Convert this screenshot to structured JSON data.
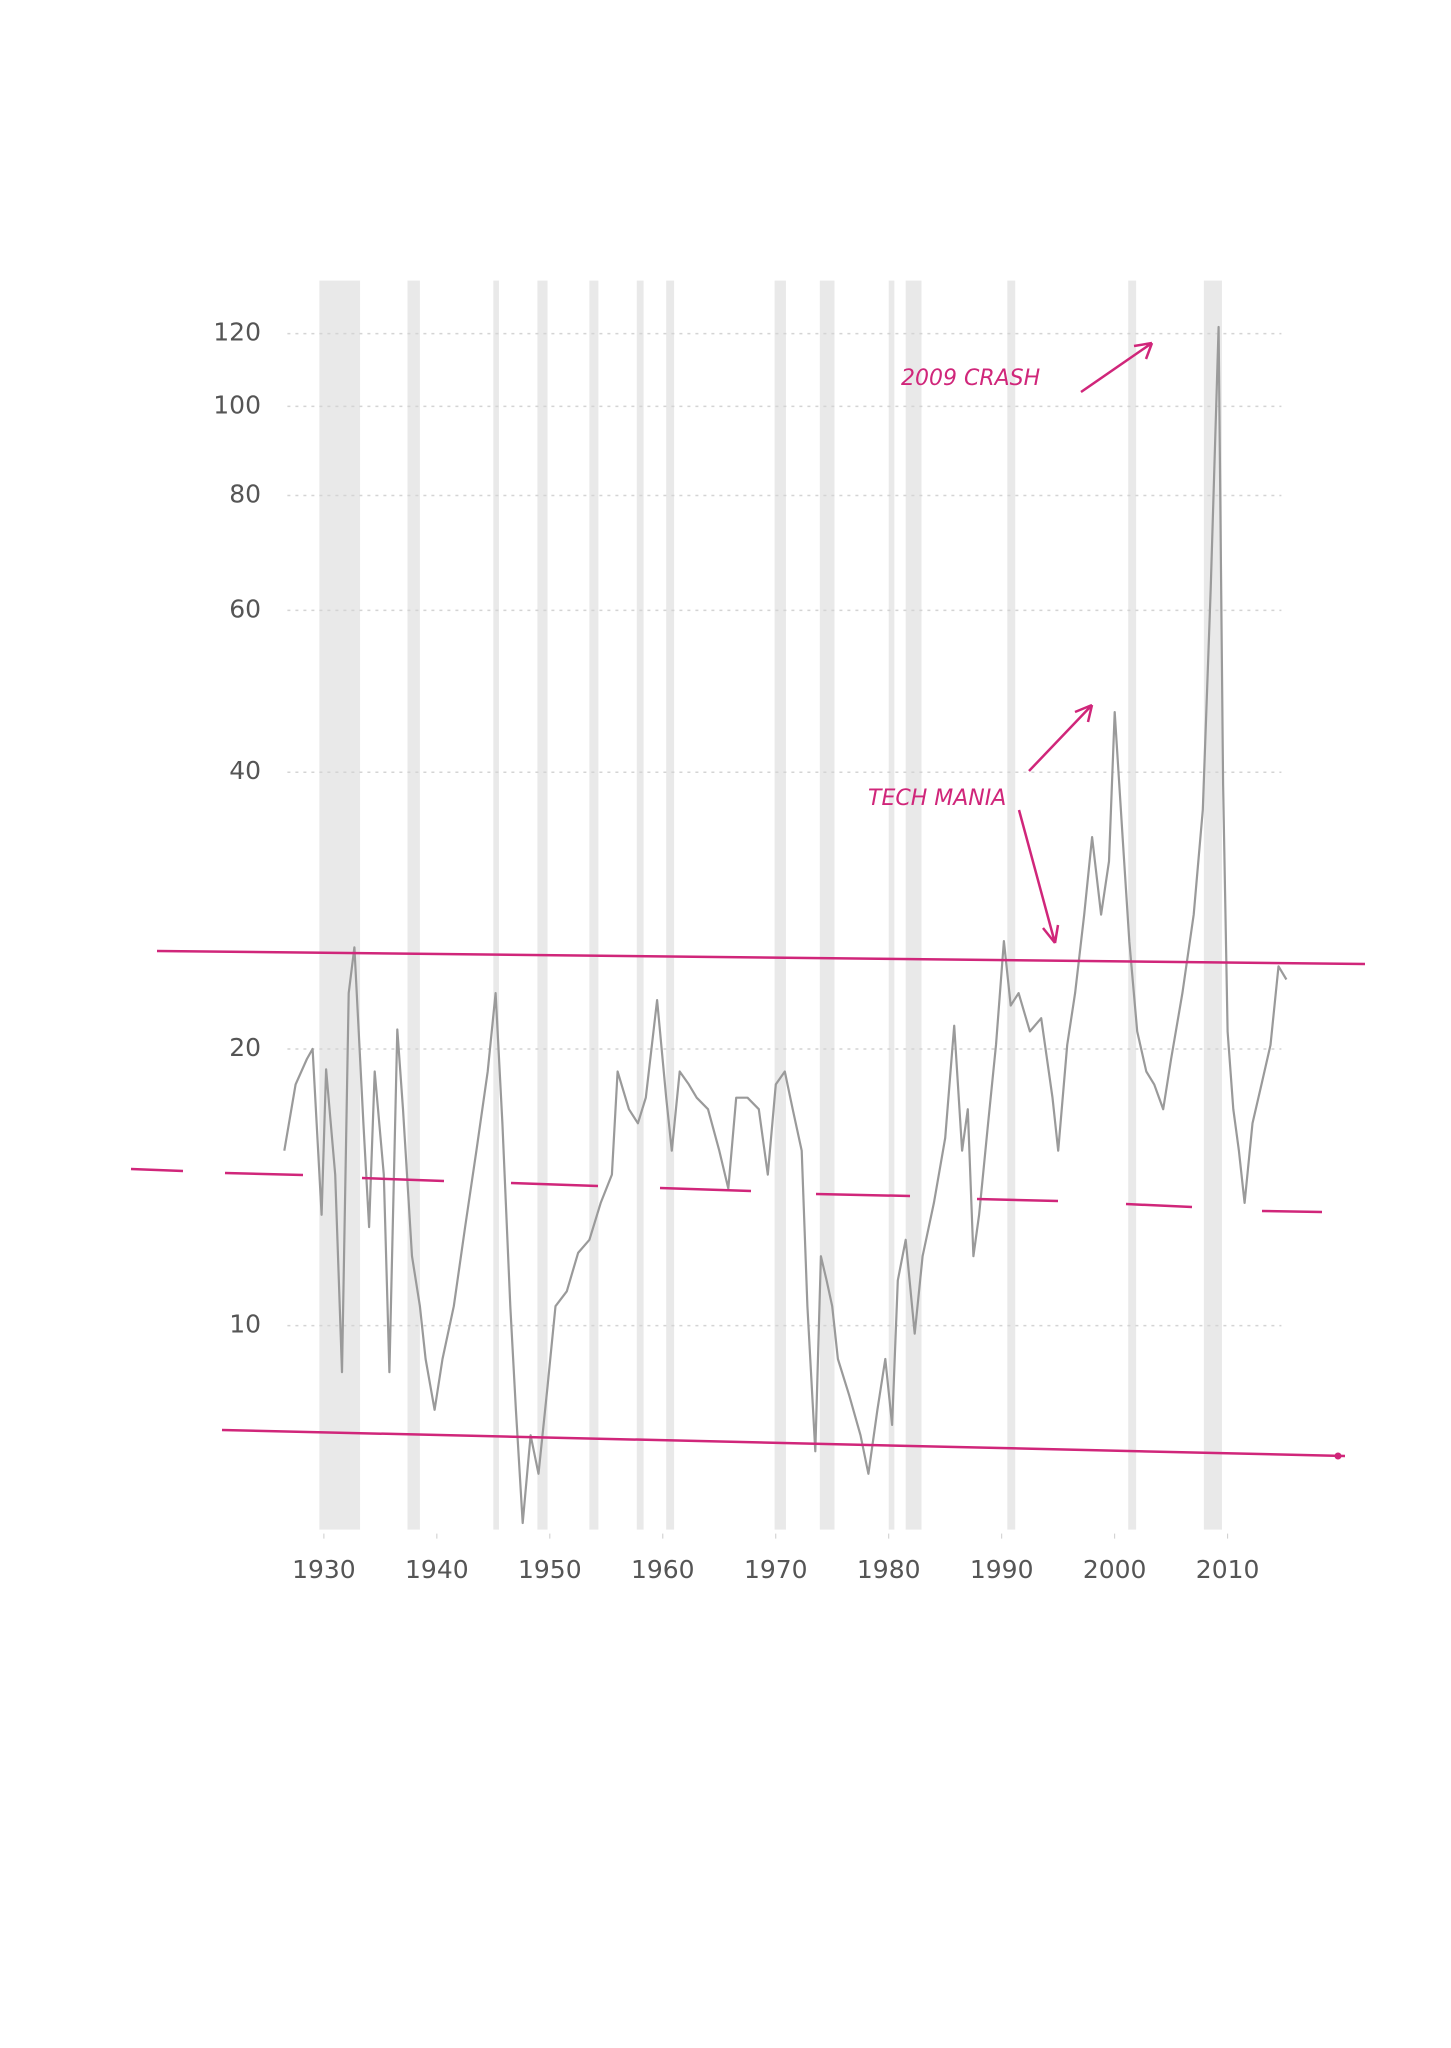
{
  "chart_data": {
    "type": "line",
    "yscale": "log",
    "grid": true,
    "color": "#9a9a9a",
    "band_color": "#e4e4e4",
    "annotation_color": "#d0267a",
    "xlim": [
      1925,
      2016
    ],
    "ylim": [
      6,
      135
    ],
    "xticks": [
      1930,
      1940,
      1950,
      1960,
      1970,
      1980,
      1990,
      2000,
      2010
    ],
    "yticks": [
      10,
      20,
      40,
      60,
      80,
      100,
      120
    ],
    "annotations": [
      "2009 CRASH",
      "TECH MANIA"
    ],
    "shaded_periods": [
      [
        1929.6,
        1933.2
      ],
      [
        1937.4,
        1938.5
      ],
      [
        1945,
        1945.5
      ],
      [
        1948.9,
        1949.8
      ],
      [
        1953.5,
        1954.3
      ],
      [
        1957.7,
        1958.3
      ],
      [
        1960.3,
        1961
      ],
      [
        1969.9,
        1970.9
      ],
      [
        1973.9,
        1975.2
      ],
      [
        1980,
        1980.5
      ],
      [
        1981.5,
        1982.9
      ],
      [
        1990.5,
        1991.2
      ],
      [
        2001.2,
        2001.9
      ],
      [
        2007.9,
        2009.5
      ]
    ],
    "x": [
      1926.5,
      1927.5,
      1928.5,
      1929,
      1929.8,
      1930.2,
      1931,
      1931.6,
      1932.2,
      1932.7,
      1933.5,
      1934,
      1934.5,
      1935.3,
      1935.8,
      1936.5,
      1937,
      1937.8,
      1938.5,
      1939,
      1939.8,
      1940.5,
      1941.5,
      1942.5,
      1943.5,
      1944.5,
      1945.2,
      1945.8,
      1946.5,
      1947,
      1947.6,
      1948.3,
      1949,
      1949.8,
      1950.5,
      1951.5,
      1952.5,
      1953.5,
      1954.5,
      1955.5,
      1956,
      1957,
      1957.8,
      1958.5,
      1959.5,
      1960.3,
      1960.8,
      1961.5,
      1962.3,
      1963,
      1964,
      1965,
      1965.8,
      1966.5,
      1967.5,
      1968.5,
      1969.3,
      1970,
      1970.8,
      1971.5,
      1972.3,
      1972.8,
      1973.5,
      1974,
      1974.5,
      1975,
      1975.5,
      1976.5,
      1977.5,
      1978.2,
      1979,
      1979.7,
      1980.3,
      1980.8,
      1981.5,
      1982.3,
      1983,
      1984,
      1985,
      1985.8,
      1986.5,
      1987,
      1987.5,
      1988,
      1988.8,
      1989.5,
      1990.2,
      1990.8,
      1991.5,
      1992.5,
      1993.5,
      1994.5,
      1995,
      1995.8,
      1996.5,
      1997.3,
      1998,
      1998.8,
      1999.5,
      2000,
      2000.7,
      2001.3,
      2002,
      2002.8,
      2003.5,
      2004.3,
      2005,
      2006,
      2007,
      2007.8,
      2008.5,
      2009.2,
      2009.6,
      2010,
      2010.5,
      2011,
      2011.5,
      2012.2,
      2013,
      2013.8,
      2014.5,
      2015.2
    ],
    "values": [
      15.5,
      18.3,
      19.5,
      20,
      13.2,
      19,
      14.6,
      8.9,
      23,
      25.8,
      16.6,
      12.8,
      18.9,
      14.6,
      8.9,
      21,
      17.2,
      11.9,
      10.5,
      9.2,
      8.1,
      9.2,
      10.5,
      12.8,
      15.5,
      18.9,
      23,
      16.6,
      10.5,
      8.1,
      6.1,
      7.6,
      6.9,
      8.6,
      10.5,
      10.9,
      12,
      12.4,
      13.6,
      14.6,
      18.9,
      17.2,
      16.6,
      17.7,
      22.6,
      17.7,
      15.5,
      18.9,
      18.3,
      17.7,
      17.2,
      15.5,
      14.1,
      17.7,
      17.7,
      17.2,
      14.6,
      18.3,
      18.9,
      17.2,
      15.5,
      10.5,
      7.3,
      11.9,
      11.2,
      10.5,
      9.2,
      8.4,
      7.6,
      6.9,
      8.1,
      9.2,
      7.8,
      11.2,
      12.4,
      9.8,
      11.9,
      13.6,
      16,
      21.2,
      15.5,
      17.2,
      11.9,
      13.2,
      16.6,
      20.2,
      26.2,
      22.3,
      23,
      20.9,
      21.6,
      17.7,
      15.5,
      20.2,
      23,
      28,
      34,
      28,
      32,
      46.5,
      34,
      26.2,
      20.9,
      18.9,
      18.3,
      17.2,
      19.5,
      23,
      28,
      36.4,
      63.3,
      122,
      38.8,
      20.9,
      17.2,
      15.5,
      13.6,
      16.6,
      18.3,
      20.2,
      24.6,
      23.8
    ]
  }
}
